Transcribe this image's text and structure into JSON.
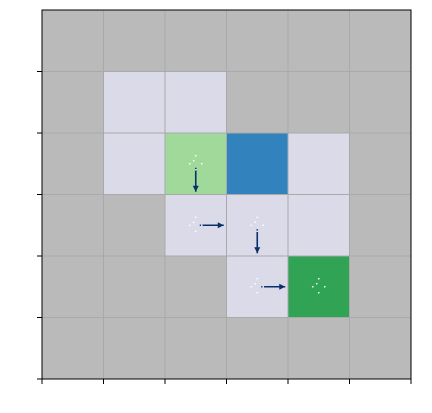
{
  "grid": {
    "rows": 6,
    "cols": 6,
    "background_color": "#bababa",
    "gridline_color": "#a9a9a9",
    "frame_color": "#000000"
  },
  "cells": [
    {
      "row": 1,
      "col": 1,
      "kind": "free",
      "color": "#dadae8"
    },
    {
      "row": 1,
      "col": 2,
      "kind": "free",
      "color": "#dadae8"
    },
    {
      "row": 2,
      "col": 1,
      "kind": "free",
      "color": "#dadae8"
    },
    {
      "row": 2,
      "col": 2,
      "kind": "start",
      "color": "#a1d99b"
    },
    {
      "row": 2,
      "col": 3,
      "kind": "agent",
      "color": "#3182bd"
    },
    {
      "row": 2,
      "col": 4,
      "kind": "free",
      "color": "#dadae8"
    },
    {
      "row": 3,
      "col": 2,
      "kind": "free",
      "color": "#dadae8"
    },
    {
      "row": 3,
      "col": 3,
      "kind": "free",
      "color": "#dadae8"
    },
    {
      "row": 3,
      "col": 4,
      "kind": "free",
      "color": "#dadae8"
    },
    {
      "row": 4,
      "col": 3,
      "kind": "free",
      "color": "#dadae8"
    },
    {
      "row": 4,
      "col": 4,
      "kind": "goal",
      "color": "#31a354"
    }
  ],
  "path_moves": [
    {
      "row": 2,
      "col": 2,
      "direction": "down"
    },
    {
      "row": 3,
      "col": 2,
      "direction": "right"
    },
    {
      "row": 3,
      "col": 3,
      "direction": "down"
    },
    {
      "row": 4,
      "col": 3,
      "direction": "right"
    }
  ],
  "markers": [
    {
      "row": 2,
      "col": 2,
      "icon": "sparkle-dots"
    },
    {
      "row": 3,
      "col": 2,
      "icon": "sparkle-dots"
    },
    {
      "row": 3,
      "col": 3,
      "icon": "sparkle-dots"
    },
    {
      "row": 4,
      "col": 3,
      "icon": "sparkle-dots"
    },
    {
      "row": 4,
      "col": 4,
      "icon": "sparkle-dots"
    }
  ],
  "arrow_color": "#08306b",
  "dot_color": "#ffffff",
  "axes": {
    "x_ticks": 7,
    "y_ticks": 6
  }
}
